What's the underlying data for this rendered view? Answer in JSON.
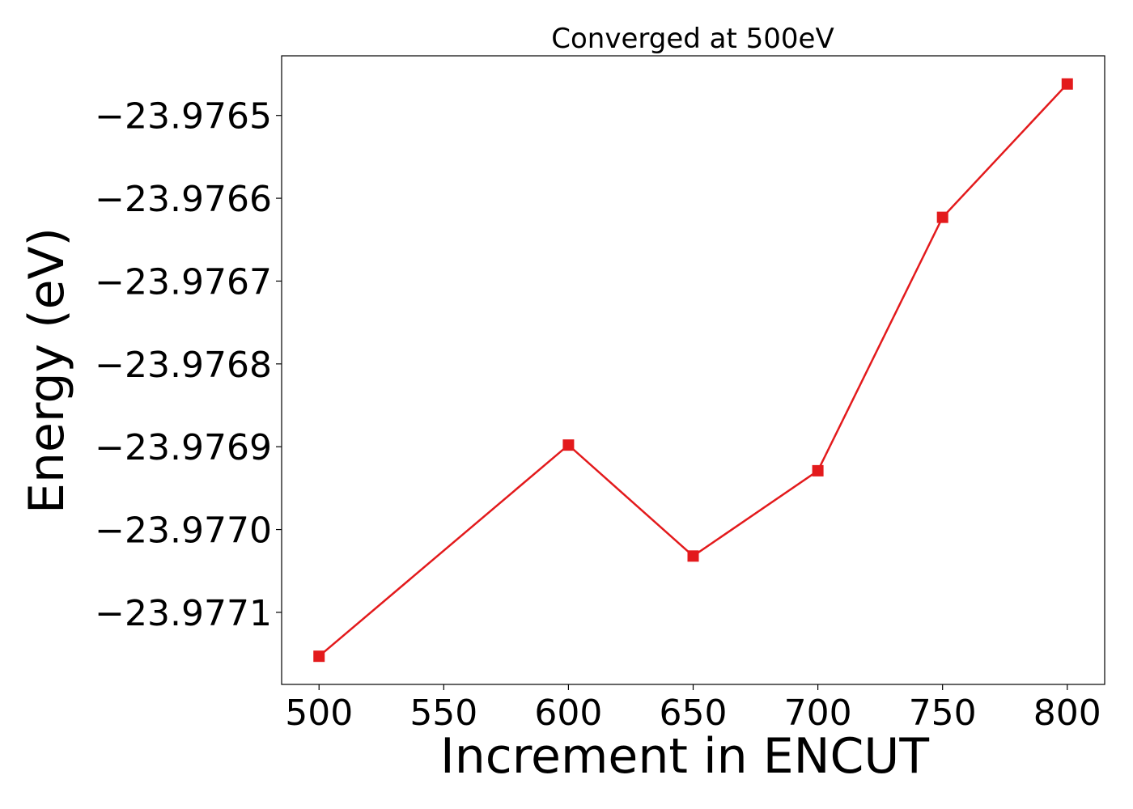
{
  "chart_data": {
    "type": "line",
    "title": "Converged at 500eV",
    "xlabel": "Increment in ENCUT",
    "ylabel": "Energy (eV)",
    "x": [
      500,
      600,
      650,
      700,
      750,
      800
    ],
    "series": [
      {
        "values": [
          -23.977153,
          -23.976898,
          -23.977032,
          -23.976929,
          -23.976623,
          -23.976462
        ],
        "color": "#e31a1c",
        "marker": "square"
      }
    ],
    "xticks": [
      500,
      550,
      600,
      650,
      700,
      750,
      800
    ],
    "xtick_labels": [
      "500",
      "550",
      "600",
      "650",
      "700",
      "750",
      "800"
    ],
    "yticks": [
      -23.9765,
      -23.9766,
      -23.9767,
      -23.9768,
      -23.9769,
      -23.977,
      -23.9771
    ],
    "ytick_labels": [
      "−23.9765",
      "−23.9766",
      "−23.9767",
      "−23.9768",
      "−23.9769",
      "−23.9770",
      "−23.9771"
    ],
    "xlim": [
      485,
      815
    ],
    "ylim": [
      -23.977187,
      -23.976428
    ],
    "grid": false,
    "legend": false
  }
}
